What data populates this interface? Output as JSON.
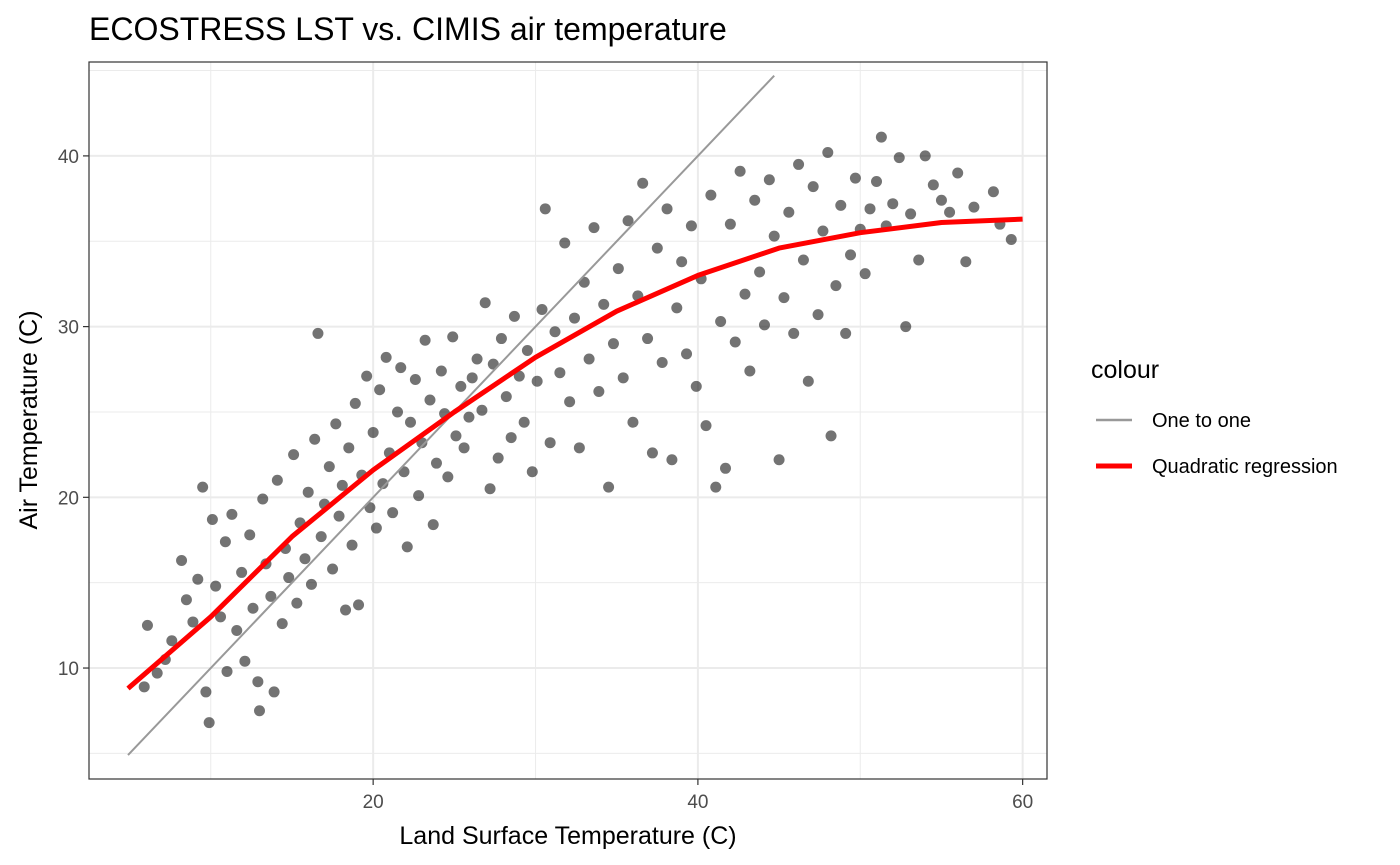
{
  "chart_data": {
    "type": "scatter",
    "title": "ECOSTRESS LST vs. CIMIS air temperature",
    "xlabel": "Land Surface Temperature (C)",
    "ylabel": "Air Temperature (C)",
    "xlim": [
      2.5,
      61.5
    ],
    "ylim": [
      3.5,
      45.5
    ],
    "x_ticks": [
      20,
      40,
      60
    ],
    "y_ticks": [
      10,
      20,
      30,
      40
    ],
    "x_tick_labels": [
      "20",
      "40",
      "60"
    ],
    "y_tick_labels": [
      "10",
      "20",
      "30",
      "40"
    ],
    "grid": true,
    "legend": {
      "title": "colour",
      "position": "right",
      "entries": [
        {
          "label": "One to one",
          "color": "#999999"
        },
        {
          "label": "Quadratic regression",
          "color": "#ff0000"
        }
      ]
    },
    "series": [
      {
        "name": "One to one",
        "kind": "line",
        "color": "#999999",
        "x": [
          4.9,
          44.7
        ],
        "y": [
          4.9,
          44.7
        ]
      },
      {
        "name": "Quadratic regression",
        "kind": "line",
        "color": "#ff0000",
        "x": [
          4.9,
          10,
          15,
          20,
          25,
          30,
          35,
          40,
          45,
          50,
          55,
          60
        ],
        "y": [
          8.8,
          13.0,
          17.7,
          21.6,
          25.0,
          28.2,
          30.9,
          33.0,
          34.6,
          35.5,
          36.1,
          36.3
        ]
      },
      {
        "name": "Observations",
        "kind": "points",
        "color": "#000000",
        "opacity": 0.55,
        "points": [
          [
            5.9,
            8.9
          ],
          [
            6.1,
            12.5
          ],
          [
            6.7,
            9.7
          ],
          [
            7.2,
            10.5
          ],
          [
            7.6,
            11.6
          ],
          [
            8.2,
            16.3
          ],
          [
            8.5,
            14.0
          ],
          [
            8.9,
            12.7
          ],
          [
            9.2,
            15.2
          ],
          [
            9.5,
            20.6
          ],
          [
            9.7,
            8.6
          ],
          [
            9.9,
            6.8
          ],
          [
            10.1,
            18.7
          ],
          [
            10.3,
            14.8
          ],
          [
            10.6,
            13.0
          ],
          [
            10.9,
            17.4
          ],
          [
            11.0,
            9.8
          ],
          [
            11.3,
            19.0
          ],
          [
            11.6,
            12.2
          ],
          [
            11.9,
            15.6
          ],
          [
            12.1,
            10.4
          ],
          [
            12.4,
            17.8
          ],
          [
            12.6,
            13.5
          ],
          [
            12.9,
            9.2
          ],
          [
            13.0,
            7.5
          ],
          [
            13.2,
            19.9
          ],
          [
            13.4,
            16.1
          ],
          [
            13.7,
            14.2
          ],
          [
            13.9,
            8.6
          ],
          [
            14.1,
            21.0
          ],
          [
            14.4,
            12.6
          ],
          [
            14.6,
            17.0
          ],
          [
            14.8,
            15.3
          ],
          [
            15.1,
            22.5
          ],
          [
            15.3,
            13.8
          ],
          [
            15.5,
            18.5
          ],
          [
            15.8,
            16.4
          ],
          [
            16.0,
            20.3
          ],
          [
            16.2,
            14.9
          ],
          [
            16.4,
            23.4
          ],
          [
            16.6,
            29.6
          ],
          [
            16.8,
            17.7
          ],
          [
            17.0,
            19.6
          ],
          [
            17.3,
            21.8
          ],
          [
            17.5,
            15.8
          ],
          [
            17.7,
            24.3
          ],
          [
            17.9,
            18.9
          ],
          [
            18.1,
            20.7
          ],
          [
            18.3,
            13.4
          ],
          [
            18.5,
            22.9
          ],
          [
            18.7,
            17.2
          ],
          [
            18.9,
            25.5
          ],
          [
            19.1,
            13.7
          ],
          [
            19.3,
            21.3
          ],
          [
            19.6,
            27.1
          ],
          [
            19.8,
            19.4
          ],
          [
            20.0,
            23.8
          ],
          [
            20.2,
            18.2
          ],
          [
            20.4,
            26.3
          ],
          [
            20.6,
            20.8
          ],
          [
            20.8,
            28.2
          ],
          [
            21.0,
            22.6
          ],
          [
            21.2,
            19.1
          ],
          [
            21.5,
            25.0
          ],
          [
            21.7,
            27.6
          ],
          [
            21.9,
            21.5
          ],
          [
            22.1,
            17.1
          ],
          [
            22.3,
            24.4
          ],
          [
            22.6,
            26.9
          ],
          [
            22.8,
            20.1
          ],
          [
            23.0,
            23.2
          ],
          [
            23.2,
            29.2
          ],
          [
            23.5,
            25.7
          ],
          [
            23.7,
            18.4
          ],
          [
            23.9,
            22.0
          ],
          [
            24.2,
            27.4
          ],
          [
            24.4,
            24.9
          ],
          [
            24.6,
            21.2
          ],
          [
            24.9,
            29.4
          ],
          [
            25.1,
            23.6
          ],
          [
            25.4,
            26.5
          ],
          [
            25.6,
            22.9
          ],
          [
            25.9,
            24.7
          ],
          [
            26.1,
            27.0
          ],
          [
            26.4,
            28.1
          ],
          [
            26.7,
            25.1
          ],
          [
            26.9,
            31.4
          ],
          [
            27.2,
            20.5
          ],
          [
            27.4,
            27.8
          ],
          [
            27.7,
            22.3
          ],
          [
            27.9,
            29.3
          ],
          [
            28.2,
            25.9
          ],
          [
            28.5,
            23.5
          ],
          [
            28.7,
            30.6
          ],
          [
            29.0,
            27.1
          ],
          [
            29.3,
            24.4
          ],
          [
            29.5,
            28.6
          ],
          [
            29.8,
            21.5
          ],
          [
            30.1,
            26.8
          ],
          [
            30.4,
            31.0
          ],
          [
            30.6,
            36.9
          ],
          [
            30.9,
            23.2
          ],
          [
            31.2,
            29.7
          ],
          [
            31.5,
            27.3
          ],
          [
            31.8,
            34.9
          ],
          [
            32.1,
            25.6
          ],
          [
            32.4,
            30.5
          ],
          [
            32.7,
            22.9
          ],
          [
            33.0,
            32.6
          ],
          [
            33.3,
            28.1
          ],
          [
            33.6,
            35.8
          ],
          [
            33.9,
            26.2
          ],
          [
            34.2,
            31.3
          ],
          [
            34.5,
            20.6
          ],
          [
            34.8,
            29.0
          ],
          [
            35.1,
            33.4
          ],
          [
            35.4,
            27.0
          ],
          [
            35.7,
            36.2
          ],
          [
            36.0,
            24.4
          ],
          [
            36.3,
            31.8
          ],
          [
            36.6,
            38.4
          ],
          [
            36.9,
            29.3
          ],
          [
            37.2,
            22.6
          ],
          [
            37.5,
            34.6
          ],
          [
            37.8,
            27.9
          ],
          [
            38.1,
            36.9
          ],
          [
            38.4,
            22.2
          ],
          [
            38.7,
            31.1
          ],
          [
            39.0,
            33.8
          ],
          [
            39.3,
            28.4
          ],
          [
            39.6,
            35.9
          ],
          [
            39.9,
            26.5
          ],
          [
            40.2,
            32.8
          ],
          [
            40.5,
            24.2
          ],
          [
            40.8,
            37.7
          ],
          [
            41.1,
            20.6
          ],
          [
            41.4,
            30.3
          ],
          [
            41.7,
            21.7
          ],
          [
            42.0,
            36.0
          ],
          [
            42.3,
            29.1
          ],
          [
            42.6,
            39.1
          ],
          [
            42.9,
            31.9
          ],
          [
            43.2,
            27.4
          ],
          [
            43.5,
            37.4
          ],
          [
            43.8,
            33.2
          ],
          [
            44.1,
            30.1
          ],
          [
            44.4,
            38.6
          ],
          [
            44.7,
            35.3
          ],
          [
            45.0,
            22.2
          ],
          [
            45.3,
            31.7
          ],
          [
            45.6,
            36.7
          ],
          [
            45.9,
            29.6
          ],
          [
            46.2,
            39.5
          ],
          [
            46.5,
            33.9
          ],
          [
            46.8,
            26.8
          ],
          [
            47.1,
            38.2
          ],
          [
            47.4,
            30.7
          ],
          [
            47.7,
            35.6
          ],
          [
            48.0,
            40.2
          ],
          [
            48.2,
            23.6
          ],
          [
            48.5,
            32.4
          ],
          [
            48.8,
            37.1
          ],
          [
            49.1,
            29.6
          ],
          [
            49.4,
            34.2
          ],
          [
            49.7,
            38.7
          ],
          [
            50.0,
            35.7
          ],
          [
            50.3,
            33.1
          ],
          [
            50.6,
            36.9
          ],
          [
            51.0,
            38.5
          ],
          [
            51.3,
            41.1
          ],
          [
            51.6,
            35.9
          ],
          [
            52.0,
            37.2
          ],
          [
            52.4,
            39.9
          ],
          [
            52.8,
            30.0
          ],
          [
            53.1,
            36.6
          ],
          [
            53.6,
            33.9
          ],
          [
            54.0,
            40.0
          ],
          [
            54.5,
            38.3
          ],
          [
            55.0,
            37.4
          ],
          [
            55.5,
            36.7
          ],
          [
            56.0,
            39.0
          ],
          [
            56.5,
            33.8
          ],
          [
            57.0,
            37.0
          ],
          [
            58.2,
            37.9
          ],
          [
            58.6,
            36.0
          ],
          [
            59.3,
            35.1
          ]
        ]
      }
    ]
  }
}
